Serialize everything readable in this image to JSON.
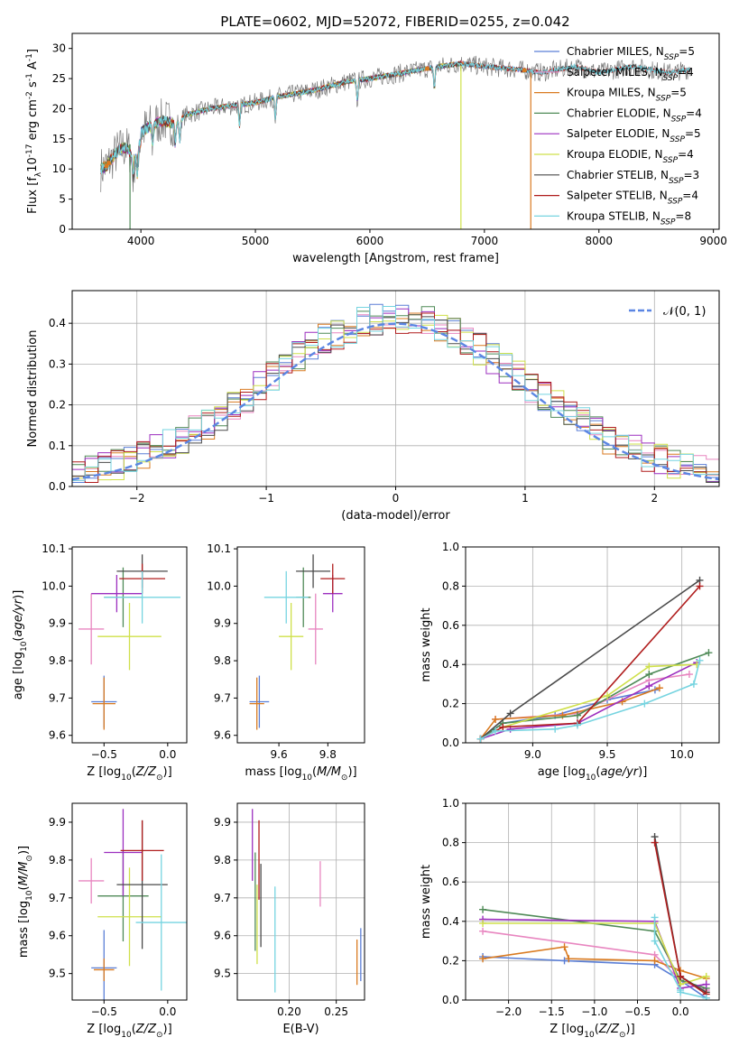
{
  "figure": {
    "title": "PLATE=0602, MJD=52072, FIBERID=0255, z=0.042"
  },
  "colors": {
    "chabrier_miles": "#5b7fd6",
    "salpeter_miles": "#e886c0",
    "kroupa_miles": "#d97a20",
    "chabrier_elodie": "#4f8a57",
    "salpeter_elodie": "#9c2fbf",
    "kroupa_elodie": "#cfe04a",
    "chabrier_stelib": "#4a4a4a",
    "salpeter_stelib": "#b01d1d",
    "kroupa_stelib": "#76d4e0",
    "normal_curve": "#5b86e3",
    "grid": "#b0b0b0"
  },
  "chart_data": [
    {
      "id": "spectrum",
      "type": "line",
      "title": "PLATE=0602, MJD=52072, FIBERID=0255, z=0.042",
      "xlabel": "wavelength [Angstrom, rest frame]",
      "ylabel": "Flux [f_λ10^-17 erg cm^-2 s^-1 A^-1]",
      "xlim": [
        3400,
        9050
      ],
      "ylim": [
        0,
        32.5
      ],
      "xticks": [
        "4000",
        "5000",
        "6000",
        "7000",
        "8000",
        "9000"
      ],
      "yticks": [
        "0",
        "5",
        "10",
        "15",
        "20",
        "25",
        "30"
      ],
      "grid": false,
      "legend_position": "top-right",
      "legend": [
        "Chabrier MILES, N_SSP=5",
        "Salpeter MILES, N_SSP=4",
        "Kroupa MILES, N_SSP=5",
        "Chabrier ELODIE, N_SSP=4",
        "Salpeter ELODIE, N_SSP=5",
        "Kroupa ELODIE, N_SSP=4",
        "Chabrier STELIB, N_SSP=3",
        "Salpeter STELIB, N_SSP=4",
        "Kroupa STELIB, N_SSP=8"
      ],
      "continuum": {
        "x": [
          3650,
          3700,
          3800,
          3900,
          4000,
          4100,
          4200,
          4300,
          4400,
          4600,
          4800,
          5000,
          5200,
          5500,
          5800,
          6000,
          6300,
          6600,
          6800,
          7000,
          7300,
          7500,
          7800,
          8000,
          8300,
          8600,
          8800
        ],
        "y": [
          10,
          10.5,
          13,
          14,
          16,
          17.5,
          18,
          17.5,
          19,
          20,
          20.5,
          21,
          22,
          23,
          24.5,
          25,
          26,
          27,
          27.5,
          27,
          26.5,
          26,
          27,
          26,
          27,
          26,
          26.5
        ]
      },
      "drops": [
        {
          "series": "Chabrier ELODIE, N_SSP=4",
          "x": 3905
        },
        {
          "series": "Kroupa ELODIE, N_SSP=4",
          "x": 6795
        },
        {
          "series": "Kroupa MILES, N_SSP=5",
          "x": 7405
        }
      ]
    },
    {
      "id": "residuals",
      "type": "line",
      "xlabel": "(data-model)/error",
      "ylabel": "Normed distribution",
      "xlim": [
        -2.5,
        2.5
      ],
      "ylim": [
        0,
        0.48
      ],
      "xticks": [
        "−2",
        "−1",
        "0",
        "1",
        "2"
      ],
      "yticks": [
        "0.0",
        "0.1",
        "0.2",
        "0.3",
        "0.4"
      ],
      "grid": true,
      "legend_position": "top-right",
      "legend": [
        "𝒩(0, 1)"
      ],
      "bin_width": 0.1,
      "x_start": -2.5
    },
    {
      "id": "age_vs_Z",
      "type": "scatter",
      "xlabel": "Z [log10(Z/Z⊙)]",
      "ylabel": "age  [log10(age/yr)]",
      "xlim": [
        -0.75,
        0.15
      ],
      "ylim": [
        9.58,
        10.105
      ],
      "xticks": [
        "−0.5",
        "0.0"
      ],
      "yticks": [
        "9.6",
        "9.7",
        "9.8",
        "9.9",
        "10.0",
        "10.1"
      ],
      "grid": false,
      "points": [
        {
          "series": "Chabrier MILES",
          "x": -0.5,
          "xerr": 0.1,
          "y": 9.69,
          "yerr": 0.07
        },
        {
          "series": "Salpeter MILES",
          "x": -0.6,
          "xerr": 0.1,
          "y": 9.885,
          "yerr": 0.095
        },
        {
          "series": "Kroupa MILES",
          "x": -0.5,
          "xerr": 0.09,
          "y": 9.685,
          "yerr": 0.07
        },
        {
          "series": "Chabrier ELODIE",
          "x": -0.35,
          "xerr": 0.15,
          "y": 9.97,
          "yerr": 0.08
        },
        {
          "series": "Salpeter ELODIE",
          "x": -0.4,
          "xerr": 0.2,
          "y": 9.98,
          "yerr": 0.05
        },
        {
          "series": "Kroupa ELODIE",
          "x": -0.3,
          "xerr": 0.25,
          "y": 9.865,
          "yerr": 0.09
        },
        {
          "series": "Chabrier STELIB",
          "x": -0.2,
          "xerr": 0.2,
          "y": 10.04,
          "yerr": 0.045
        },
        {
          "series": "Salpeter STELIB",
          "x": -0.2,
          "xerr": 0.18,
          "y": 10.02,
          "yerr": 0.04
        },
        {
          "series": "Kroupa STELIB",
          "x": -0.2,
          "xerr": 0.3,
          "y": 9.97,
          "yerr": 0.07
        }
      ]
    },
    {
      "id": "age_vs_mass",
      "type": "scatter",
      "xlabel": "mass [log10(M/M⊙)]",
      "ylabel": "",
      "xlim": [
        9.43,
        9.95
      ],
      "ylim": [
        9.58,
        10.105
      ],
      "xticks": [
        "9.6",
        "9.8"
      ],
      "yticks": [
        "9.6",
        "9.7",
        "9.8",
        "9.9",
        "10.0",
        "10.1"
      ],
      "grid": false,
      "points": [
        {
          "series": "Chabrier MILES",
          "x": 9.52,
          "xerr": 0.04,
          "y": 9.69,
          "yerr": 0.07
        },
        {
          "series": "Salpeter MILES",
          "x": 9.75,
          "xerr": 0.03,
          "y": 9.885,
          "yerr": 0.095
        },
        {
          "series": "Kroupa MILES",
          "x": 9.51,
          "xerr": 0.03,
          "y": 9.685,
          "yerr": 0.07
        },
        {
          "series": "Chabrier ELODIE",
          "x": 9.7,
          "xerr": 0.03,
          "y": 9.97,
          "yerr": 0.08
        },
        {
          "series": "Salpeter ELODIE",
          "x": 9.82,
          "xerr": 0.04,
          "y": 9.98,
          "yerr": 0.05
        },
        {
          "series": "Kroupa ELODIE",
          "x": 9.65,
          "xerr": 0.05,
          "y": 9.865,
          "yerr": 0.09
        },
        {
          "series": "Chabrier STELIB",
          "x": 9.74,
          "xerr": 0.07,
          "y": 10.04,
          "yerr": 0.045
        },
        {
          "series": "Salpeter STELIB",
          "x": 9.82,
          "xerr": 0.05,
          "y": 10.02,
          "yerr": 0.04
        },
        {
          "series": "Kroupa STELIB",
          "x": 9.63,
          "xerr": 0.09,
          "y": 9.97,
          "yerr": 0.07
        }
      ]
    },
    {
      "id": "weight_vs_age",
      "type": "line",
      "xlabel": "age  [log10(age/yr)]",
      "ylabel": "mass weight",
      "xlim": [
        8.55,
        10.25
      ],
      "ylim": [
        0,
        1.0
      ],
      "xticks": [
        "9.0",
        "9.5",
        "10.0"
      ],
      "yticks": [
        "0.0",
        "0.2",
        "0.4",
        "0.6",
        "0.8",
        "1.0"
      ],
      "grid": true,
      "series": [
        {
          "name": "Chabrier MILES",
          "x": [
            8.65,
            8.8,
            9.15,
            9.5,
            9.82
          ],
          "y": [
            0.02,
            0.1,
            0.14,
            0.22,
            0.27
          ]
        },
        {
          "name": "Salpeter MILES",
          "x": [
            8.75,
            9.3,
            9.78,
            10.05
          ],
          "y": [
            0.12,
            0.15,
            0.32,
            0.35
          ]
        },
        {
          "name": "Kroupa MILES",
          "x": [
            8.65,
            8.75,
            9.2,
            9.6,
            9.85
          ],
          "y": [
            0.02,
            0.12,
            0.14,
            0.21,
            0.28
          ]
        },
        {
          "name": "Chabrier ELODIE",
          "x": [
            8.65,
            8.8,
            9.3,
            9.78,
            10.18
          ],
          "y": [
            0.02,
            0.1,
            0.14,
            0.35,
            0.46
          ]
        },
        {
          "name": "Salpeter ELODIE",
          "x": [
            8.65,
            8.85,
            9.3,
            9.78,
            10.1
          ],
          "y": [
            0.02,
            0.07,
            0.1,
            0.29,
            0.41
          ]
        },
        {
          "name": "Kroupa ELODIE",
          "x": [
            8.65,
            8.8,
            9.5,
            9.78,
            10.1
          ],
          "y": [
            0.02,
            0.08,
            0.24,
            0.39,
            0.4
          ]
        },
        {
          "name": "Chabrier STELIB",
          "x": [
            8.65,
            8.85,
            10.12
          ],
          "y": [
            0.02,
            0.15,
            0.83
          ]
        },
        {
          "name": "Salpeter STELIB",
          "x": [
            8.65,
            8.8,
            9.3,
            10.12
          ],
          "y": [
            0.02,
            0.08,
            0.1,
            0.8
          ]
        },
        {
          "name": "Kroupa STELIB",
          "x": [
            8.65,
            8.75,
            9.15,
            9.3,
            9.75,
            10.08,
            10.12
          ],
          "y": [
            0.02,
            0.06,
            0.07,
            0.09,
            0.2,
            0.3,
            0.42
          ]
        }
      ]
    },
    {
      "id": "mass_vs_Z",
      "type": "scatter",
      "xlabel": "Z [log10(Z/Z⊙)]",
      "ylabel": "mass [log10(M/M⊙)]",
      "xlim": [
        -0.75,
        0.15
      ],
      "ylim": [
        9.43,
        9.95
      ],
      "xticks": [
        "−0.5",
        "0.0"
      ],
      "yticks": [
        "9.5",
        "9.6",
        "9.7",
        "9.8",
        "9.9"
      ],
      "grid": false,
      "points": [
        {
          "series": "Chabrier MILES",
          "x": -0.5,
          "xerr": 0.1,
          "y": 9.515,
          "yerr": 0.1
        },
        {
          "series": "Salpeter MILES",
          "x": -0.6,
          "xerr": 0.1,
          "y": 9.745,
          "yerr": 0.06
        },
        {
          "series": "Kroupa MILES",
          "x": -0.5,
          "xerr": 0.08,
          "y": 9.51,
          "yerr": 0.03
        },
        {
          "series": "Chabrier ELODIE",
          "x": -0.35,
          "xerr": 0.2,
          "y": 9.705,
          "yerr": 0.12
        },
        {
          "series": "Salpeter ELODIE",
          "x": -0.35,
          "xerr": 0.15,
          "y": 9.82,
          "yerr": 0.115
        },
        {
          "series": "Kroupa ELODIE",
          "x": -0.3,
          "xerr": 0.25,
          "y": 9.65,
          "yerr": 0.13
        },
        {
          "series": "Chabrier STELIB",
          "x": -0.2,
          "xerr": 0.2,
          "y": 9.735,
          "yerr": 0.17
        },
        {
          "series": "Salpeter STELIB",
          "x": -0.2,
          "xerr": 0.17,
          "y": 9.825,
          "yerr": 0.08
        },
        {
          "series": "Kroupa STELIB",
          "x": -0.05,
          "xerr": 0.2,
          "y": 9.635,
          "yerr": 0.18
        }
      ]
    },
    {
      "id": "mass_vs_ebv",
      "type": "scatter",
      "xlabel": "E(B-V)",
      "ylabel": "",
      "xlim": [
        0.145,
        0.28
      ],
      "ylim": [
        9.43,
        9.95
      ],
      "xticks": [
        "0.20",
        "0.25"
      ],
      "yticks": [
        "9.5",
        "9.6",
        "9.7",
        "9.8",
        "9.9"
      ],
      "grid": true,
      "points": [
        {
          "series": "Chabrier MILES",
          "x": 0.276,
          "xerr": 0,
          "y": 9.55,
          "yerr": 0.07
        },
        {
          "series": "Salpeter MILES",
          "x": 0.233,
          "xerr": 0,
          "y": 9.737,
          "yerr": 0.06
        },
        {
          "series": "Kroupa MILES",
          "x": 0.272,
          "xerr": 0,
          "y": 9.53,
          "yerr": 0.06
        },
        {
          "series": "Chabrier ELODIE",
          "x": 0.164,
          "xerr": 0,
          "y": 9.69,
          "yerr": 0.13
        },
        {
          "series": "Salpeter ELODIE",
          "x": 0.161,
          "xerr": 0,
          "y": 9.84,
          "yerr": 0.095
        },
        {
          "series": "Kroupa ELODIE",
          "x": 0.166,
          "xerr": 0,
          "y": 9.63,
          "yerr": 0.105
        },
        {
          "series": "Chabrier STELIB",
          "x": 0.17,
          "xerr": 0,
          "y": 9.68,
          "yerr": 0.11
        },
        {
          "series": "Salpeter STELIB",
          "x": 0.168,
          "xerr": 0,
          "y": 9.8,
          "yerr": 0.105
        },
        {
          "series": "Kroupa STELIB",
          "x": 0.185,
          "xerr": 0,
          "y": 9.59,
          "yerr": 0.14
        }
      ]
    },
    {
      "id": "weight_vs_Z",
      "type": "line",
      "xlabel": "Z [log10(Z/Z⊙)]",
      "ylabel": "mass weight",
      "xlim": [
        -2.5,
        0.45
      ],
      "ylim": [
        0,
        1.0
      ],
      "xticks": [
        "−2.0",
        "−1.5",
        "−1.0",
        "−0.5",
        "0.0"
      ],
      "yticks": [
        "0.0",
        "0.2",
        "0.4",
        "0.6",
        "0.8",
        "1.0"
      ],
      "grid": true,
      "series": [
        {
          "name": "Chabrier MILES",
          "x": [
            -2.3,
            -1.35,
            -0.3,
            0.0,
            0.3
          ],
          "y": [
            0.22,
            0.2,
            0.18,
            0.1,
            0.01
          ]
        },
        {
          "name": "Salpeter MILES",
          "x": [
            -2.3,
            -0.3,
            0.0,
            0.3
          ],
          "y": [
            0.35,
            0.23,
            0.1,
            0.05
          ]
        },
        {
          "name": "Kroupa MILES",
          "x": [
            -2.3,
            -1.35,
            -1.3,
            -0.3,
            0.0,
            0.3
          ],
          "y": [
            0.21,
            0.27,
            0.21,
            0.2,
            0.15,
            0.11
          ]
        },
        {
          "name": "Chabrier ELODIE",
          "x": [
            -2.3,
            -0.3,
            0.0,
            0.3
          ],
          "y": [
            0.46,
            0.35,
            0.1,
            0.06
          ]
        },
        {
          "name": "Salpeter ELODIE",
          "x": [
            -2.3,
            -0.3,
            0.0,
            0.3
          ],
          "y": [
            0.41,
            0.4,
            0.06,
            0.08
          ]
        },
        {
          "name": "Kroupa ELODIE",
          "x": [
            -2.3,
            -0.3,
            0.0,
            0.3
          ],
          "y": [
            0.39,
            0.39,
            0.08,
            0.12
          ]
        },
        {
          "name": "Chabrier STELIB",
          "x": [
            -0.3,
            0.0,
            0.3
          ],
          "y": [
            0.83,
            0.12,
            0.04
          ]
        },
        {
          "name": "Salpeter STELIB",
          "x": [
            -0.3,
            0.0,
            0.3
          ],
          "y": [
            0.8,
            0.12,
            0.03
          ]
        },
        {
          "name": "Kroupa STELIB",
          "x": [
            -0.3,
            -0.3,
            0.0,
            0.0,
            0.3
          ],
          "y": [
            0.42,
            0.3,
            0.05,
            0.04,
            0.01
          ]
        }
      ]
    }
  ]
}
